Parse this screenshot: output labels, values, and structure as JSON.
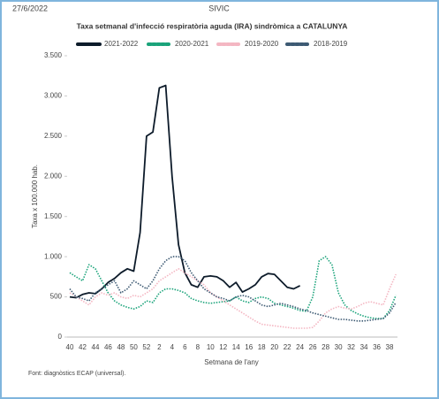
{
  "header": {
    "date": "27/6/2022",
    "source": "SIVIC"
  },
  "footer": "Font: diagnòstics ECAP (universal).",
  "chart_data": {
    "type": "line",
    "title": "Taxa setmanal d'infecció respiratòria aguda (IRA) sindròmica a CATALUNYA",
    "x_label": "Setmana de l'any",
    "y_label": "Taxa x 100.000 hab.",
    "categories": [
      40,
      null,
      42,
      null,
      44,
      null,
      46,
      null,
      48,
      null,
      50,
      null,
      52,
      null,
      2,
      null,
      4,
      null,
      6,
      null,
      8,
      null,
      10,
      null,
      12,
      null,
      14,
      null,
      16,
      null,
      18,
      null,
      20,
      null,
      22,
      null,
      24,
      null,
      26,
      null,
      28,
      null,
      30,
      null,
      32,
      null,
      34,
      null,
      36,
      null,
      38,
      null
    ],
    "ylim": [
      0,
      3500
    ],
    "yticks": [
      0,
      500,
      {
        "value": 1000,
        "label": "1.000"
      },
      {
        "value": 1500,
        "label": "1.500"
      },
      {
        "value": 2000,
        "label": "2.000"
      },
      {
        "value": 2500,
        "label": "2.500"
      },
      {
        "value": 3000,
        "label": "3.000"
      },
      {
        "value": 3500,
        "label": "3.500"
      }
    ],
    "grid": false,
    "series": [
      {
        "name": "2021-2022",
        "color": "#0d1b2a",
        "line_style": "solid",
        "values": [
          500,
          490,
          530,
          550,
          540,
          600,
          680,
          730,
          800,
          850,
          820,
          1300,
          2500,
          2550,
          3100,
          3130,
          2000,
          1150,
          800,
          650,
          620,
          750,
          760,
          750,
          700,
          620,
          680,
          560,
          600,
          650,
          750,
          790,
          780,
          700,
          620,
          600,
          640,
          null,
          null,
          null,
          null,
          null,
          null,
          null,
          null,
          null,
          null,
          null,
          null,
          null,
          null,
          null
        ]
      },
      {
        "name": "2020-2021",
        "color": "#1aa37a",
        "line_style": "dotted",
        "values": [
          800,
          750,
          700,
          900,
          850,
          700,
          550,
          450,
          400,
          370,
          350,
          380,
          450,
          430,
          550,
          600,
          600,
          580,
          550,
          480,
          450,
          430,
          420,
          430,
          440,
          450,
          500,
          450,
          430,
          480,
          500,
          480,
          420,
          400,
          380,
          360,
          330,
          320,
          500,
          950,
          1000,
          900,
          550,
          400,
          330,
          290,
          260,
          240,
          230,
          230,
          330,
          520
        ]
      },
      {
        "name": "2019-2020",
        "color": "#f4b6c2",
        "line_style": "dotted",
        "values": [
          550,
          500,
          450,
          400,
          500,
          550,
          520,
          550,
          500,
          480,
          520,
          500,
          550,
          600,
          700,
          750,
          800,
          850,
          800,
          750,
          700,
          650,
          550,
          500,
          450,
          400,
          350,
          300,
          250,
          200,
          160,
          150,
          140,
          130,
          120,
          110,
          110,
          110,
          120,
          200,
          300,
          350,
          380,
          360,
          350,
          380,
          420,
          440,
          420,
          400,
          600,
          780
        ]
      },
      {
        "name": "2018-2019",
        "color": "#3d5a73",
        "line_style": "dotted",
        "values": [
          600,
          500,
          480,
          450,
          550,
          600,
          650,
          700,
          550,
          600,
          700,
          650,
          600,
          700,
          850,
          950,
          1000,
          1000,
          950,
          800,
          700,
          600,
          550,
          500,
          480,
          450,
          500,
          520,
          500,
          450,
          400,
          380,
          400,
          420,
          400,
          380,
          350,
          330,
          300,
          280,
          260,
          240,
          220,
          220,
          210,
          200,
          200,
          210,
          220,
          230,
          300,
          430
        ]
      }
    ]
  }
}
